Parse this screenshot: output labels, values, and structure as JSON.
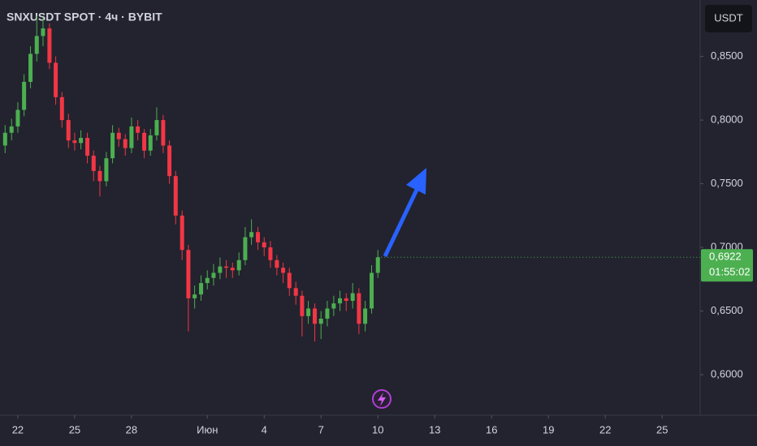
{
  "chart_data": {
    "type": "candlestick",
    "title": "SNXUSDT SPOT · 4ч · BYBIT",
    "currency_button": "USDT",
    "x": [
      -0.67,
      -0.33,
      0,
      0.33,
      0.67,
      1,
      1.33,
      1.67,
      2,
      2.33,
      2.67,
      3,
      3.33,
      3.67,
      4,
      4.33,
      4.67,
      5,
      5.33,
      5.67,
      6,
      6.33,
      6.67,
      7,
      7.33,
      7.67,
      8,
      8.33,
      8.67,
      9,
      9.33,
      9.67,
      10,
      10.33,
      10.67,
      11,
      11.33,
      11.67,
      12,
      12.33,
      12.67,
      13,
      13.33,
      13.67,
      14,
      14.33,
      14.67,
      15,
      15.33,
      15.67,
      16,
      16.33,
      16.67,
      17,
      17.33,
      17.67,
      18,
      18.33,
      18.67,
      19
    ],
    "open": [
      0.78,
      0.79,
      0.795,
      0.808,
      0.83,
      0.852,
      0.866,
      0.872,
      0.845,
      0.818,
      0.8,
      0.784,
      0.782,
      0.786,
      0.772,
      0.76,
      0.752,
      0.77,
      0.79,
      0.785,
      0.778,
      0.795,
      0.79,
      0.776,
      0.788,
      0.8,
      0.78,
      0.756,
      0.725,
      0.698,
      0.66,
      0.663,
      0.672,
      0.676,
      0.68,
      0.685,
      0.684,
      0.682,
      0.69,
      0.708,
      0.712,
      0.704,
      0.7,
      0.69,
      0.684,
      0.68,
      0.668,
      0.662,
      0.646,
      0.652,
      0.64,
      0.644,
      0.652,
      0.656,
      0.66,
      0.658,
      0.664,
      0.64,
      0.652,
      0.68
    ],
    "high": [
      0.796,
      0.801,
      0.814,
      0.836,
      0.858,
      0.882,
      0.88,
      0.876,
      0.85,
      0.822,
      0.805,
      0.79,
      0.792,
      0.79,
      0.776,
      0.764,
      0.775,
      0.796,
      0.794,
      0.789,
      0.802,
      0.8,
      0.793,
      0.793,
      0.81,
      0.804,
      0.784,
      0.76,
      0.729,
      0.702,
      0.67,
      0.678,
      0.682,
      0.687,
      0.692,
      0.69,
      0.688,
      0.696,
      0.716,
      0.722,
      0.716,
      0.708,
      0.705,
      0.694,
      0.688,
      0.684,
      0.673,
      0.666,
      0.658,
      0.656,
      0.65,
      0.658,
      0.662,
      0.666,
      0.664,
      0.672,
      0.668,
      0.658,
      0.686,
      0.698
    ],
    "low": [
      0.774,
      0.784,
      0.79,
      0.803,
      0.825,
      0.846,
      0.858,
      0.84,
      0.812,
      0.794,
      0.778,
      0.776,
      0.777,
      0.766,
      0.752,
      0.74,
      0.748,
      0.766,
      0.779,
      0.772,
      0.774,
      0.784,
      0.77,
      0.772,
      0.784,
      0.774,
      0.75,
      0.718,
      0.69,
      0.634,
      0.652,
      0.658,
      0.667,
      0.67,
      0.675,
      0.676,
      0.676,
      0.678,
      0.686,
      0.702,
      0.698,
      0.693,
      0.684,
      0.678,
      0.672,
      0.662,
      0.655,
      0.63,
      0.64,
      0.626,
      0.628,
      0.638,
      0.646,
      0.65,
      0.65,
      0.652,
      0.632,
      0.634,
      0.648,
      0.676
    ],
    "close": [
      0.79,
      0.795,
      0.808,
      0.83,
      0.852,
      0.866,
      0.872,
      0.845,
      0.818,
      0.8,
      0.784,
      0.782,
      0.786,
      0.772,
      0.76,
      0.752,
      0.77,
      0.79,
      0.785,
      0.778,
      0.795,
      0.79,
      0.776,
      0.788,
      0.8,
      0.78,
      0.756,
      0.725,
      0.698,
      0.66,
      0.663,
      0.672,
      0.676,
      0.68,
      0.685,
      0.684,
      0.682,
      0.69,
      0.708,
      0.712,
      0.704,
      0.7,
      0.69,
      0.684,
      0.68,
      0.668,
      0.662,
      0.646,
      0.652,
      0.64,
      0.644,
      0.652,
      0.656,
      0.66,
      0.658,
      0.664,
      0.64,
      0.652,
      0.68,
      0.6922
    ],
    "up_color": "#4caf50",
    "down_color": "#f23645",
    "last_price_label": "0,6922",
    "countdown": "01:55:02",
    "xlim": [
      -0.94,
      35.92
    ],
    "xticks": [
      {
        "value": 0,
        "label": "22"
      },
      {
        "value": 3,
        "label": "25"
      },
      {
        "value": 6,
        "label": "28"
      },
      {
        "value": 10,
        "label": "Июн"
      },
      {
        "value": 13,
        "label": "4"
      },
      {
        "value": 16,
        "label": "7"
      },
      {
        "value": 19,
        "label": "10"
      },
      {
        "value": 22,
        "label": "13"
      },
      {
        "value": 25,
        "label": "16"
      },
      {
        "value": 28,
        "label": "19"
      },
      {
        "value": 31,
        "label": "22"
      },
      {
        "value": 34,
        "label": "25"
      }
    ],
    "ylim": [
      0.5682,
      0.8943
    ],
    "yticks": [
      {
        "value": 0.6,
        "label": "0,6000"
      },
      {
        "value": 0.65,
        "label": "0,6500"
      },
      {
        "value": 0.7,
        "label": "0,7000"
      },
      {
        "value": 0.75,
        "label": "0,7500"
      },
      {
        "value": 0.8,
        "label": "0,8000"
      },
      {
        "value": 0.85,
        "label": "0,8500"
      }
    ]
  }
}
